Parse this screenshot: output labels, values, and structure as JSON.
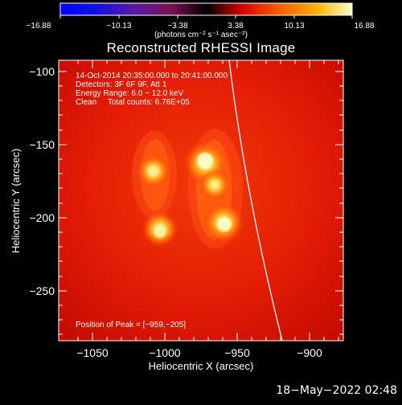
{
  "title": "Reconstructed RHESSI Image",
  "colorbar": {
    "tick_labels": [
      "−16.88",
      "−10.13",
      "−3.38",
      "3.38",
      "10.13",
      "16.88"
    ],
    "units_text": "(photons cm⁻² s⁻¹ asec⁻²)"
  },
  "annotations": {
    "time_range": "14-Oct-2014 20:35:00.000 to 20:41:00.000",
    "detectors": "Detectors: 3F 6F 9F, Att 1",
    "energy": "Energy Range: 6.0 − 12.0 keV",
    "clean": "Clean     Total counts: 6.76E+05",
    "peak": "Position of Peak = [−959,−205]"
  },
  "axes": {
    "xlabel": "Heliocentric X (arcsec)",
    "ylabel": "Heliocentric Y (arcsec)",
    "x_ticks": [
      "−1050",
      "−1000",
      "−950",
      "−900"
    ],
    "y_ticks": [
      "−100",
      "−150",
      "−200",
      "−250"
    ]
  },
  "footer": {
    "date": "18−May−2022 02:48"
  }
}
